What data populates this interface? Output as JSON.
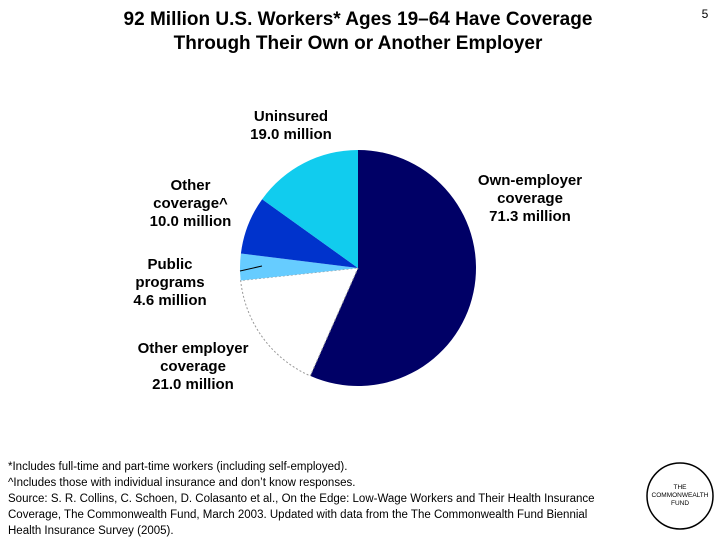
{
  "chart_data": {
    "type": "pie",
    "title": "92 Million U.S. Workers* Ages 19–64 Have Coverage\nThrough Their Own or Another Employer",
    "page_number": "5",
    "categories": [
      "Own-employer\ncoverage",
      "Other employer\ncoverage",
      "Public\nprograms",
      "Other\ncoverage^",
      "Uninsured"
    ],
    "values": [
      71.3,
      21.0,
      4.6,
      10.0,
      19.0
    ],
    "value_labels": [
      "71.3 million",
      "21.0 million",
      "4.6 million",
      "10.0 million",
      "19.0 million"
    ],
    "colors": [
      "#000066",
      "#ffffff",
      "#66ccff",
      "#0033cc",
      "#11ccee"
    ],
    "notes": [
      "*Includes full-time and part-time workers (including self-employed).",
      "^Includes those with individual insurance and don’t know responses.",
      "Source: S. R. Collins, C. Schoen, D. Colasanto et al., On the Edge: Low-Wage Workers and Their Health Insurance",
      "Coverage, The Commonwealth Fund, March 2003. Updated with data from the The Commonwealth Fund Biennial",
      "Health Insurance Survey (2005)."
    ],
    "logo": "THE\nCOMMONWEALTH\nFUND"
  }
}
